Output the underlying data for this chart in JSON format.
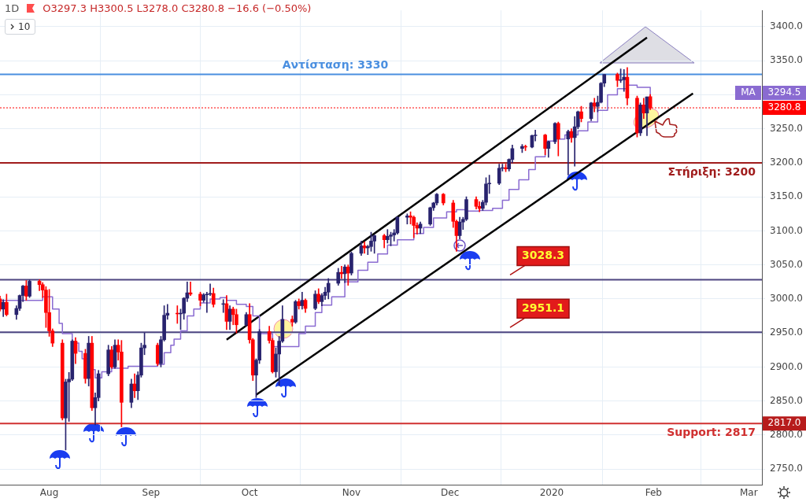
{
  "chart_data": {
    "type": "candlestick",
    "title": "1D",
    "subtitle": "O3297.3 H3300.5 L3278.0 C3280.8 −16.6 (−0.50%)",
    "x": [
      "2019-07-17",
      "2019-07-18",
      "2019-07-19",
      "2019-07-22",
      "2019-07-23",
      "2019-07-24",
      "2019-07-25",
      "2019-07-26",
      "2019-07-29",
      "2019-07-30",
      "2019-07-31",
      "2019-08-01",
      "2019-08-02",
      "2019-08-05",
      "2019-08-06",
      "2019-08-07",
      "2019-08-08",
      "2019-08-09",
      "2019-08-12",
      "2019-08-13",
      "2019-08-14",
      "2019-08-15",
      "2019-08-16",
      "2019-08-19",
      "2019-08-20",
      "2019-08-21",
      "2019-08-22",
      "2019-08-23",
      "2019-08-26",
      "2019-08-27",
      "2019-08-28",
      "2019-08-29",
      "2019-08-30",
      "2019-09-03",
      "2019-09-04",
      "2019-09-05",
      "2019-09-06",
      "2019-09-09",
      "2019-09-10",
      "2019-09-11",
      "2019-09-12",
      "2019-09-13",
      "2019-09-16",
      "2019-09-17",
      "2019-09-18",
      "2019-09-19",
      "2019-09-20",
      "2019-09-23",
      "2019-09-24",
      "2019-09-25",
      "2019-09-26",
      "2019-09-27",
      "2019-09-30",
      "2019-10-01",
      "2019-10-02",
      "2019-10-03",
      "2019-10-04",
      "2019-10-07",
      "2019-10-08",
      "2019-10-09",
      "2019-10-10",
      "2019-10-11",
      "2019-10-14",
      "2019-10-15",
      "2019-10-16",
      "2019-10-17",
      "2019-10-18",
      "2019-10-21",
      "2019-10-22",
      "2019-10-23",
      "2019-10-24",
      "2019-10-25",
      "2019-10-28",
      "2019-10-29",
      "2019-10-30",
      "2019-10-31",
      "2019-11-01",
      "2019-11-04",
      "2019-11-05",
      "2019-11-06",
      "2019-11-07",
      "2019-11-08",
      "2019-11-11",
      "2019-11-12",
      "2019-11-13",
      "2019-11-14",
      "2019-11-15",
      "2019-11-18",
      "2019-11-19",
      "2019-11-20",
      "2019-11-21",
      "2019-11-22",
      "2019-11-25",
      "2019-11-26",
      "2019-11-27",
      "2019-11-29",
      "2019-12-02",
      "2019-12-03",
      "2019-12-04",
      "2019-12-05",
      "2019-12-06",
      "2019-12-09",
      "2019-12-10",
      "2019-12-11",
      "2019-12-12",
      "2019-12-13",
      "2019-12-16",
      "2019-12-17",
      "2019-12-18",
      "2019-12-19",
      "2019-12-20",
      "2019-12-23",
      "2019-12-24",
      "2019-12-26",
      "2019-12-27",
      "2019-12-30",
      "2019-12-31",
      "2020-01-02",
      "2020-01-03",
      "2020-01-06",
      "2020-01-07",
      "2020-01-08",
      "2020-01-09",
      "2020-01-10",
      "2020-01-13",
      "2020-01-14",
      "2020-01-15",
      "2020-01-16",
      "2020-01-17",
      "2020-01-21",
      "2020-01-22",
      "2020-01-23",
      "2020-01-24",
      "2020-01-27",
      "2020-01-28",
      "2020-01-29",
      "2020-01-30",
      "2020-01-31"
    ],
    "ohlc": [
      [
        3000,
        3004,
        2982,
        2985
      ],
      [
        2985,
        2999,
        2974,
        2995
      ],
      [
        2995,
        3007,
        2975,
        2977
      ],
      [
        2977,
        2990,
        2970,
        2986
      ],
      [
        2986,
        3006,
        2983,
        3005
      ],
      [
        3005,
        3020,
        2996,
        3019
      ],
      [
        3019,
        3027,
        2998,
        3004
      ],
      [
        3004,
        3028,
        3002,
        3026
      ],
      [
        3026,
        3028,
        3012,
        3021
      ],
      [
        3021,
        3024,
        3002,
        3013
      ],
      [
        3013,
        3018,
        2958,
        2980
      ],
      [
        2980,
        3014,
        2945,
        2953
      ],
      [
        2953,
        2956,
        2930,
        2935
      ],
      [
        2935,
        2940,
        2822,
        2825
      ],
      [
        2825,
        2882,
        2778,
        2878
      ],
      [
        2878,
        2892,
        2820,
        2882
      ],
      [
        2882,
        2940,
        2880,
        2938
      ],
      [
        2938,
        2943,
        2905,
        2920
      ],
      [
        2920,
        2926,
        2876,
        2883
      ],
      [
        2883,
        2945,
        2872,
        2935
      ],
      [
        2935,
        2945,
        2836,
        2840
      ],
      [
        2840,
        2862,
        2815,
        2855
      ],
      [
        2855,
        2895,
        2850,
        2890
      ],
      [
        2890,
        2932,
        2887,
        2925
      ],
      [
        2925,
        2930,
        2898,
        2900
      ],
      [
        2900,
        2940,
        2898,
        2932
      ],
      [
        2932,
        2940,
        2910,
        2922
      ],
      [
        2922,
        2939,
        2812,
        2848
      ],
      [
        2848,
        2882,
        2840,
        2875
      ],
      [
        2875,
        2890,
        2855,
        2865
      ],
      [
        2865,
        2893,
        2852,
        2888
      ],
      [
        2888,
        2935,
        2885,
        2928
      ],
      [
        2928,
        2950,
        2918,
        2932
      ],
      [
        2932,
        2935,
        2902,
        2905
      ],
      [
        2905,
        2945,
        2900,
        2940
      ],
      [
        2940,
        2990,
        2938,
        2976
      ],
      [
        2976,
        2992,
        2970,
        2979
      ],
      [
        2979,
        2990,
        2964,
        2978
      ],
      [
        2978,
        2985,
        2955,
        2979
      ],
      [
        2979,
        3002,
        2970,
        3001
      ],
      [
        3001,
        3025,
        2996,
        3009
      ],
      [
        3009,
        3025,
        3005,
        3007
      ],
      [
        3007,
        3010,
        2990,
        2998
      ],
      [
        2998,
        3008,
        2995,
        3006
      ],
      [
        3006,
        3010,
        2980,
        3007
      ],
      [
        3007,
        3022,
        3005,
        3008
      ],
      [
        3008,
        3016,
        2988,
        2992
      ],
      [
        2992,
        2999,
        2980,
        2993
      ],
      [
        2993,
        3005,
        2955,
        2967
      ],
      [
        2967,
        2990,
        2955,
        2985
      ],
      [
        2985,
        2988,
        2962,
        2977
      ],
      [
        2977,
        2985,
        2950,
        2962
      ],
      [
        2962,
        2980,
        2960,
        2977
      ],
      [
        2977,
        2993,
        2935,
        2940
      ],
      [
        2940,
        2942,
        2880,
        2888
      ],
      [
        2888,
        2912,
        2855,
        2910
      ],
      [
        2910,
        2955,
        2905,
        2952
      ],
      [
        2952,
        2960,
        2935,
        2939
      ],
      [
        2939,
        2942,
        2891,
        2893
      ],
      [
        2893,
        2928,
        2885,
        2919
      ],
      [
        2919,
        2945,
        2873,
        2938
      ],
      [
        2938,
        2990,
        2936,
        2970
      ],
      [
        2970,
        2975,
        2960,
        2966
      ],
      [
        2966,
        2998,
        2964,
        2996
      ],
      [
        2996,
        3000,
        2985,
        2990
      ],
      [
        2990,
        3010,
        2985,
        2998
      ],
      [
        2998,
        3000,
        2980,
        2986
      ],
      [
        2986,
        3012,
        2984,
        3007
      ],
      [
        3007,
        3015,
        2993,
        2996
      ],
      [
        2996,
        3008,
        2990,
        3005
      ],
      [
        3005,
        3017,
        2999,
        3010
      ],
      [
        3010,
        3030,
        3000,
        3023
      ],
      [
        3023,
        3045,
        3020,
        3039
      ],
      [
        3039,
        3048,
        3030,
        3037
      ],
      [
        3037,
        3050,
        3024,
        3047
      ],
      [
        3047,
        3050,
        3020,
        3038
      ],
      [
        3038,
        3069,
        3035,
        3067
      ],
      [
        3067,
        3085,
        3064,
        3078
      ],
      [
        3078,
        3084,
        3067,
        3075
      ],
      [
        3075,
        3079,
        3065,
        3077
      ],
      [
        3077,
        3098,
        3070,
        3085
      ],
      [
        3085,
        3094,
        3067,
        3093
      ],
      [
        3093,
        3095,
        3075,
        3087
      ],
      [
        3087,
        3102,
        3082,
        3092
      ],
      [
        3092,
        3098,
        3078,
        3094
      ],
      [
        3094,
        3102,
        3085,
        3097
      ],
      [
        3097,
        3121,
        3095,
        3120
      ],
      [
        3120,
        3125,
        3110,
        3122
      ],
      [
        3122,
        3128,
        3110,
        3120
      ],
      [
        3120,
        3122,
        3090,
        3108
      ],
      [
        3108,
        3112,
        3095,
        3104
      ],
      [
        3104,
        3113,
        3096,
        3110
      ],
      [
        3110,
        3135,
        3108,
        3134
      ],
      [
        3134,
        3142,
        3130,
        3141
      ],
      [
        3141,
        3155,
        3138,
        3154
      ],
      [
        3154,
        3155,
        3138,
        3141
      ],
      [
        3141,
        3145,
        3105,
        3114
      ],
      [
        3114,
        3116,
        3070,
        3093
      ],
      [
        3093,
        3120,
        3088,
        3113
      ],
      [
        3113,
        3120,
        3102,
        3117
      ],
      [
        3117,
        3150,
        3115,
        3146
      ],
      [
        3146,
        3150,
        3132,
        3136
      ],
      [
        3136,
        3143,
        3128,
        3133
      ],
      [
        3133,
        3145,
        3130,
        3142
      ],
      [
        3142,
        3178,
        3138,
        3169
      ],
      [
        3169,
        3182,
        3155,
        3170
      ],
      [
        3170,
        3198,
        3168,
        3192
      ],
      [
        3192,
        3198,
        3188,
        3193
      ],
      [
        3193,
        3198,
        3187,
        3191
      ],
      [
        3191,
        3206,
        3188,
        3205
      ],
      [
        3205,
        3226,
        3200,
        3221
      ],
      [
        3221,
        3227,
        3215,
        3224
      ],
      [
        3224,
        3226,
        3218,
        3223
      ],
      [
        3223,
        3241,
        3222,
        3240
      ],
      [
        3240,
        3248,
        3232,
        3241
      ],
      [
        3241,
        3242,
        3212,
        3221
      ],
      [
        3221,
        3232,
        3208,
        3231
      ],
      [
        3231,
        3259,
        3228,
        3258
      ],
      [
        3258,
        3260,
        3210,
        3235
      ],
      [
        3235,
        3248,
        3182,
        3246
      ],
      [
        3246,
        3250,
        3230,
        3237
      ],
      [
        3237,
        3268,
        3195,
        3253
      ],
      [
        3253,
        3276,
        3250,
        3275
      ],
      [
        3275,
        3283,
        3260,
        3265
      ],
      [
        3265,
        3289,
        3262,
        3288
      ],
      [
        3288,
        3295,
        3275,
        3283
      ],
      [
        3283,
        3298,
        3275,
        3289
      ],
      [
        3289,
        3318,
        3288,
        3317
      ],
      [
        3317,
        3330,
        3312,
        3330
      ],
      [
        3330,
        3332,
        3312,
        3321
      ],
      [
        3321,
        3338,
        3318,
        3322
      ],
      [
        3322,
        3337,
        3305,
        3326
      ],
      [
        3326,
        3340,
        3285,
        3295
      ],
      [
        3295,
        3298,
        3238,
        3244
      ],
      [
        3244,
        3288,
        3240,
        3285
      ],
      [
        3285,
        3295,
        3265,
        3273
      ],
      [
        3273,
        3297,
        3240,
        3297
      ],
      [
        3297.3,
        3300.5,
        3278.0,
        3280.8
      ]
    ],
    "colors": [
      "#ff0000",
      "#28236e",
      "#ff0000",
      "#28236e",
      "#28236e",
      "#28236e",
      "#ff0000",
      "#28236e",
      "#ff0000",
      "#ff0000",
      "#ff0000",
      "#ff0000",
      "#ff0000",
      "#ff0000",
      "#28236e",
      "#28236e",
      "#28236e",
      "#ff0000",
      "#ff0000",
      "#28236e",
      "#ff0000",
      "#28236e",
      "#28236e",
      "#28236e",
      "#ff0000",
      "#28236e",
      "#ff0000",
      "#ff0000",
      "#28236e",
      "#ff0000",
      "#28236e",
      "#28236e",
      "#28236e",
      "#ff0000",
      "#28236e",
      "#28236e",
      "#28236e",
      "#ff0000",
      "#28236e",
      "#28236e",
      "#28236e",
      "#ff0000",
      "#ff0000",
      "#28236e",
      "#28236e",
      "#28236e",
      "#ff0000",
      "#28236e",
      "#ff0000",
      "#28236e",
      "#ff0000",
      "#ff0000",
      "#28236e",
      "#ff0000",
      "#ff0000",
      "#28236e",
      "#28236e",
      "#ff0000",
      "#ff0000",
      "#28236e",
      "#28236e",
      "#28236e",
      "#ff0000",
      "#28236e",
      "#ff0000",
      "#28236e",
      "#ff0000",
      "#28236e",
      "#ff0000",
      "#28236e",
      "#28236e",
      "#28236e",
      "#28236e",
      "#ff0000",
      "#28236e",
      "#ff0000",
      "#28236e",
      "#28236e",
      "#ff0000",
      "#28236e",
      "#28236e",
      "#28236e",
      "#ff0000",
      "#28236e",
      "#28236e",
      "#28236e",
      "#28236e",
      "#28236e",
      "#ff0000",
      "#ff0000",
      "#ff0000",
      "#28236e",
      "#28236e",
      "#28236e",
      "#28236e",
      "#ff0000",
      "#ff0000",
      "#ff0000",
      "#28236e",
      "#28236e",
      "#28236e",
      "#ff0000",
      "#ff0000",
      "#28236e",
      "#28236e",
      "#28236e",
      "#28236e",
      "#28236e",
      "#ff0000",
      "#28236e",
      "#28236e",
      "#28236e",
      "#ff0000",
      "#28236e",
      "#28236e",
      "#ff0000",
      "#28236e",
      "#28236e",
      "#ff0000",
      "#28236e",
      "#ff0000",
      "#28236e",
      "#28236e",
      "#ff0000",
      "#28236e",
      "#ff0000",
      "#28236e",
      "#28236e",
      "#28236e",
      "#ff0000",
      "#28236e",
      "#28236e",
      "#ff0000",
      "#ff0000",
      "#28236e",
      "#ff0000",
      "#28236e",
      "#ff0000"
    ],
    "series": [
      {
        "name": "MA",
        "type": "step",
        "color": "#8a6bd1",
        "x": [
          "2019-07-17",
          "2019-07-30",
          "2019-08-02",
          "2019-08-04",
          "2019-08-05",
          "2019-08-08",
          "2019-08-10",
          "2019-08-11",
          "2019-08-14",
          "2019-08-15",
          "2019-08-17",
          "2019-08-20",
          "2019-08-25",
          "2019-08-29",
          "2019-09-03",
          "2019-09-05",
          "2019-09-07",
          "2019-09-08",
          "2019-09-10",
          "2019-09-12",
          "2019-09-14",
          "2019-09-16",
          "2019-09-19",
          "2019-09-22",
          "2019-09-24",
          "2019-09-27",
          "2019-09-30",
          "2019-10-02",
          "2019-10-04",
          "2019-10-08",
          "2019-10-14",
          "2019-10-16",
          "2019-10-18",
          "2019-10-21",
          "2019-10-23",
          "2019-10-26",
          "2019-10-30",
          "2019-11-03",
          "2019-11-06",
          "2019-11-09",
          "2019-11-12",
          "2019-11-15",
          "2019-11-20",
          "2019-11-23",
          "2019-11-26",
          "2019-11-30",
          "2019-12-03",
          "2019-12-06",
          "2019-12-10",
          "2019-12-14",
          "2019-12-17",
          "2019-12-19",
          "2019-12-22",
          "2019-12-25",
          "2019-12-27",
          "2019-12-30",
          "2020-01-02",
          "2020-01-05",
          "2020-01-09",
          "2020-01-12",
          "2020-01-15",
          "2020-01-18",
          "2020-01-21",
          "2020-01-24",
          "2020-01-27",
          "2020-01-31"
        ],
        "values": [
          2998,
          3003,
          2985,
          2964,
          2949,
          2935,
          2923,
          2912,
          2896,
          2884,
          2893,
          2898,
          2901,
          2901,
          2904,
          2921,
          2932,
          2941,
          2953,
          2975,
          2985,
          2994,
          3000,
          3002,
          2998,
          2992,
          2989,
          2975,
          2949,
          2930,
          2930,
          2949,
          2960,
          2980,
          2991,
          3003,
          3025,
          3042,
          3054,
          3066,
          3079,
          3087,
          3096,
          3105,
          3119,
          3128,
          3131,
          3129,
          3130,
          3133,
          3145,
          3161,
          3175,
          3190,
          3209,
          3232,
          3235,
          3241,
          3247,
          3260,
          3277,
          3300,
          3309,
          3314,
          3311,
          3295
        ]
      },
      {
        "type": "line",
        "color": "#000000",
        "x": [
          "2019-09-24",
          "2020-01-30"
        ],
        "values": [
          2940,
          3384
        ]
      },
      {
        "type": "line",
        "color": "#000000",
        "x": [
          "2019-10-03",
          "2020-02-13"
        ],
        "values": [
          2859,
          3302
        ]
      }
    ],
    "xlim": [
      "2019-07-17",
      "2020-03-05"
    ],
    "xticks": [
      {
        "value": "2019-08-01",
        "label": "Aug"
      },
      {
        "value": "2019-09-01",
        "label": "Sep"
      },
      {
        "value": "2019-10-01",
        "label": "Oct"
      },
      {
        "value": "2019-11-01",
        "label": "Nov"
      },
      {
        "value": "2019-12-01",
        "label": "Dec"
      },
      {
        "value": "2020-01-01",
        "label": "2020"
      },
      {
        "value": "2020-02-01",
        "label": "Feb"
      },
      {
        "value": "2020-03-01",
        "label": "Mar"
      }
    ],
    "ylim": [
      2727,
      3424
    ],
    "yticks": [
      {
        "value": 2750,
        "label": "2750.0"
      },
      {
        "value": 2800,
        "label": "2800.0"
      },
      {
        "value": 2850,
        "label": "2850.0"
      },
      {
        "value": 2900,
        "label": "2900.0"
      },
      {
        "value": 2950,
        "label": "2950.0"
      },
      {
        "value": 3000,
        "label": "3000.0"
      },
      {
        "value": 3050,
        "label": "3050.0"
      },
      {
        "value": 3100,
        "label": "3100.0"
      },
      {
        "value": 3150,
        "label": "3150.0"
      },
      {
        "value": 3200,
        "label": "3200.0"
      },
      {
        "value": 3250,
        "label": "3250.0"
      },
      {
        "value": 3300,
        "label": null
      },
      {
        "value": 3350,
        "label": "3350.0"
      },
      {
        "value": 3400,
        "label": "3400.0"
      }
    ],
    "grid": true,
    "legend": "right",
    "ref_lines": [
      {
        "axis": "y",
        "value": 3330,
        "label": "Αντίσταση: 3330",
        "color": "#4a8fe0"
      },
      {
        "axis": "y",
        "value": 3280.8,
        "label": "3280.8",
        "color": "#ff0000",
        "line_style": "dotted"
      },
      {
        "axis": "y",
        "value": 3200,
        "label": "Στήριξη: 3200",
        "color": "#a01c1c"
      },
      {
        "axis": "y",
        "value": 3028.3,
        "label": "3028.3",
        "color": "#4d4580"
      },
      {
        "axis": "y",
        "value": 2951.1,
        "label": "2951.1",
        "color": "#4d4580"
      },
      {
        "axis": "y",
        "value": 2817,
        "label": "Support: 2817",
        "color": "#d03030"
      }
    ],
    "annotations": [
      "10",
      "3294.5",
      "2817.0"
    ]
  }
}
